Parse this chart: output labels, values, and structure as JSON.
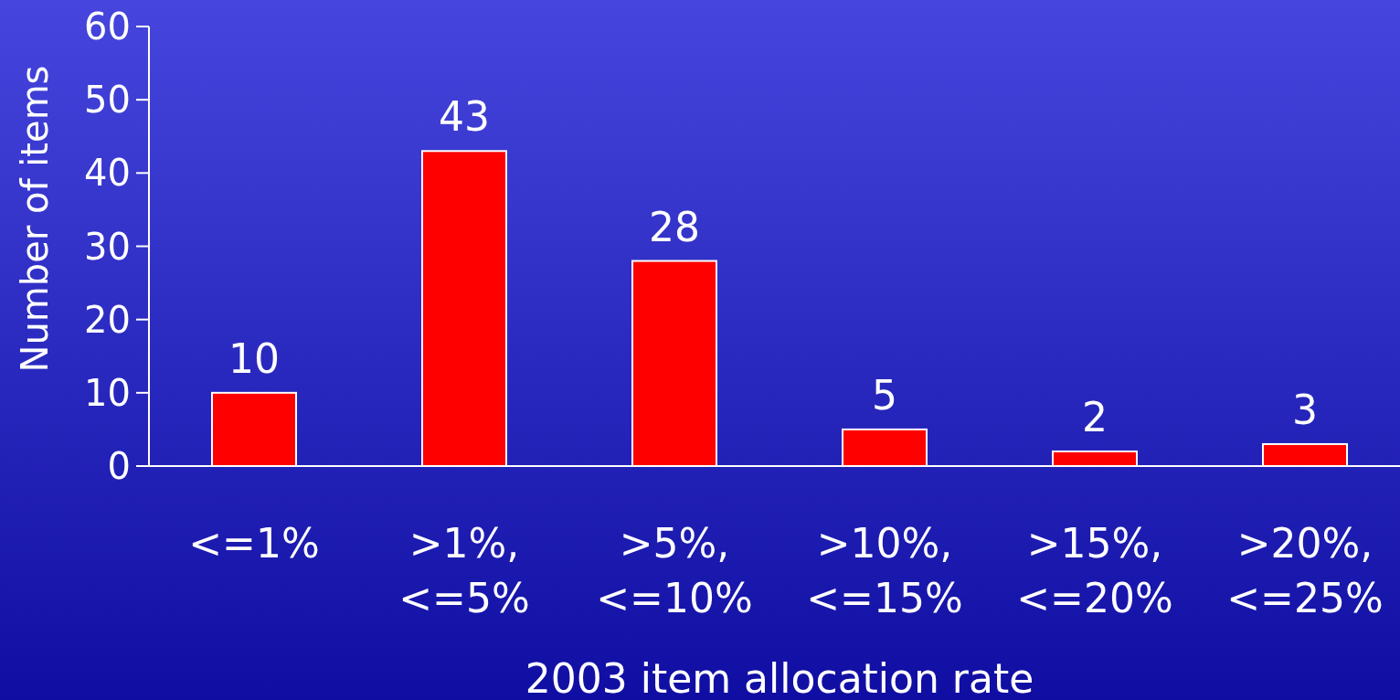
{
  "chart_data": {
    "type": "bar",
    "xlabel": "2003 item allocation rate",
    "ylabel": "Number of items",
    "categories": [
      "<=1%",
      ">1%, <=5%",
      ">5%, <=10%",
      ">10%, <=15%",
      ">15%, <=20%",
      ">20%, <=25%"
    ],
    "values": [
      10,
      43,
      28,
      5,
      2,
      3
    ],
    "color": "#ff0000",
    "ylim": [
      0,
      60
    ],
    "yticks": [
      0,
      10,
      20,
      30,
      40,
      50,
      60
    ],
    "grid": false,
    "data_labels": true
  }
}
